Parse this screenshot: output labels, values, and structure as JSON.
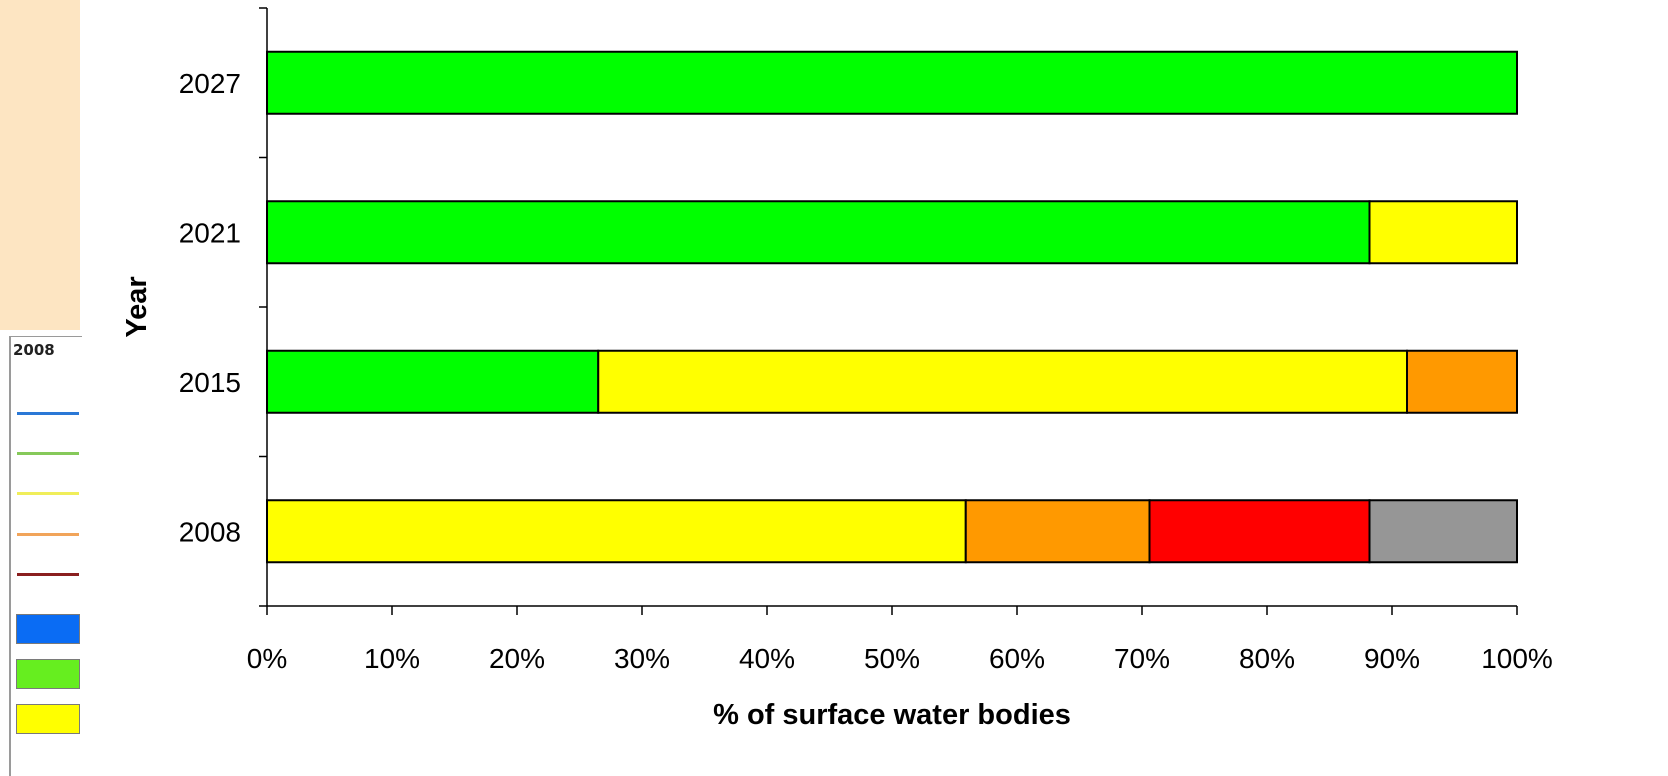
{
  "legend_fragment": {
    "title": "2008",
    "lines": [
      {
        "icon": "line-swatch",
        "color": "#2a78d6"
      },
      {
        "icon": "line-swatch",
        "color": "#86c95a"
      },
      {
        "icon": "line-swatch",
        "color": "#f0ee5a"
      },
      {
        "icon": "line-swatch",
        "color": "#f1a45a"
      },
      {
        "icon": "line-swatch",
        "color": "#8a1f1f"
      }
    ],
    "boxes": [
      {
        "icon": "fill-swatch",
        "color": "#0a6cf4"
      },
      {
        "icon": "fill-swatch",
        "color": "#66ee1f"
      },
      {
        "icon": "fill-swatch",
        "color": "#ffff00"
      }
    ]
  },
  "chart_data": {
    "type": "bar",
    "orientation": "horizontal",
    "stacked": "percent",
    "categories": [
      "2008",
      "2015",
      "2021",
      "2027"
    ],
    "series": [
      {
        "color": "#00ff00",
        "values": [
          0,
          26.5,
          88.2,
          100
        ]
      },
      {
        "color": "#ffff00",
        "values": [
          55.9,
          64.7,
          11.8,
          0
        ]
      },
      {
        "color": "#ff9900",
        "values": [
          14.7,
          8.8,
          0,
          0
        ]
      },
      {
        "color": "#ff0000",
        "values": [
          17.6,
          0,
          0,
          0
        ]
      },
      {
        "color": "#969696",
        "values": [
          11.8,
          0,
          0,
          0
        ]
      }
    ],
    "xlabel": "% of surface water bodies",
    "ylabel": "Year",
    "xlim": [
      0,
      100
    ],
    "xticks": [
      "0%",
      "10%",
      "20%",
      "30%",
      "40%",
      "50%",
      "60%",
      "70%",
      "80%",
      "90%",
      "100%"
    ],
    "grid": false,
    "legend": "none"
  }
}
